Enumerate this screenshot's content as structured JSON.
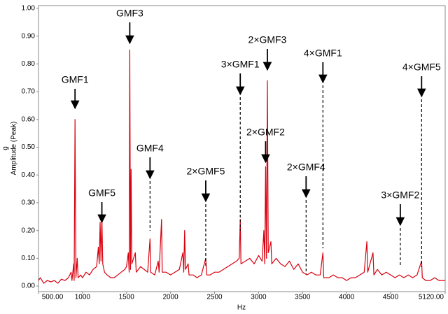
{
  "chart_data": {
    "type": "line",
    "x_label": "Hz",
    "y_label_unit": "g",
    "y_label": "Amplitude (Peak)",
    "x": [
      500,
      520,
      560,
      600,
      640,
      680,
      720,
      760,
      800,
      840,
      870,
      880,
      900,
      905,
      915,
      925,
      940,
      950,
      980,
      1000,
      1040,
      1080,
      1120,
      1160,
      1180,
      1190,
      1200,
      1210,
      1220,
      1230,
      1250,
      1280,
      1320,
      1360,
      1400,
      1440,
      1480,
      1500,
      1520,
      1530,
      1537,
      1545,
      1552,
      1560,
      1600,
      1610,
      1660,
      1700,
      1740,
      1767,
      1775,
      1820,
      1860,
      1870,
      1898,
      1905,
      1950,
      2000,
      2050,
      2100,
      2140,
      2150,
      2160,
      2170,
      2200,
      2210,
      2260,
      2300,
      2350,
      2400,
      2410,
      2450,
      2500,
      2550,
      2600,
      2650,
      2700,
      2750,
      2780,
      2792,
      2800,
      2850,
      2900,
      2950,
      3000,
      3040,
      3060,
      3070,
      3080,
      3090,
      3100,
      3110,
      3140,
      3150,
      3200,
      3250,
      3300,
      3350,
      3400,
      3450,
      3500,
      3550,
      3600,
      3650,
      3700,
      3731,
      3740,
      3800,
      3850,
      3900,
      3950,
      4000,
      4050,
      4100,
      4150,
      4200,
      4230,
      4240,
      4300,
      4310,
      4350,
      4400,
      4450,
      4500,
      4550,
      4600,
      4650,
      4700,
      4750,
      4800,
      4852,
      4860,
      4900,
      4950,
      5000,
      5050,
      5120
    ],
    "series": [
      {
        "color": "#d8000f",
        "values": [
          0.02,
          0.03,
          0.01,
          0.02,
          0.015,
          0.02,
          0.01,
          0.025,
          0.02,
          0.03,
          0.05,
          0.02,
          0.08,
          0.02,
          0.6,
          0.03,
          0.1,
          0.03,
          0.04,
          0.03,
          0.05,
          0.04,
          0.06,
          0.07,
          0.14,
          0.08,
          0.23,
          0.09,
          0.25,
          0.08,
          0.05,
          0.04,
          0.03,
          0.03,
          0.04,
          0.05,
          0.06,
          0.07,
          0.12,
          0.05,
          0.85,
          0.06,
          0.42,
          0.08,
          0.12,
          0.05,
          0.07,
          0.06,
          0.05,
          0.17,
          0.05,
          0.04,
          0.09,
          0.05,
          0.24,
          0.05,
          0.05,
          0.04,
          0.05,
          0.06,
          0.12,
          0.05,
          0.2,
          0.06,
          0.08,
          0.04,
          0.04,
          0.03,
          0.04,
          0.1,
          0.04,
          0.04,
          0.05,
          0.05,
          0.06,
          0.07,
          0.08,
          0.09,
          0.1,
          0.24,
          0.08,
          0.09,
          0.1,
          0.08,
          0.11,
          0.09,
          0.2,
          0.08,
          0.43,
          0.1,
          0.74,
          0.12,
          0.16,
          0.08,
          0.1,
          0.08,
          0.07,
          0.09,
          0.06,
          0.08,
          0.05,
          0.04,
          0.05,
          0.04,
          0.04,
          0.12,
          0.03,
          0.03,
          0.04,
          0.03,
          0.03,
          0.02,
          0.03,
          0.03,
          0.04,
          0.05,
          0.16,
          0.05,
          0.12,
          0.04,
          0.06,
          0.04,
          0.05,
          0.04,
          0.03,
          0.04,
          0.03,
          0.04,
          0.03,
          0.04,
          0.09,
          0.03,
          0.02,
          0.02,
          0.03,
          0.02,
          0.02
        ]
      }
    ],
    "xlim": [
      500,
      5120
    ],
    "xticks": [
      {
        "value": 500,
        "label": "500.00"
      },
      1000,
      1500,
      2000,
      2500,
      3000,
      3500,
      4000,
      4500,
      {
        "value": 5120,
        "label": "5120.00"
      }
    ],
    "ylim": [
      -0.02,
      1.01
    ],
    "yticks": [
      {
        "value": 0,
        "label": "0.00"
      },
      {
        "value": 0.1,
        "label": "0.10"
      },
      {
        "value": 0.2,
        "label": "0.20"
      },
      {
        "value": 0.3,
        "label": "0.30"
      },
      {
        "value": 0.4,
        "label": "0.40"
      },
      {
        "value": 0.5,
        "label": "0.50"
      },
      {
        "value": 0.6,
        "label": "0.60"
      },
      {
        "value": 0.7,
        "label": "0.70"
      },
      {
        "value": 0.8,
        "label": "0.80"
      },
      {
        "value": 0.9,
        "label": "0.90"
      },
      {
        "value": 1,
        "label": "1.00"
      }
    ],
    "grid": false,
    "annotations": [
      {
        "text": "GMF1",
        "x": 915
      },
      {
        "text": "GMF5",
        "x": 1220
      },
      {
        "text": "GMF3",
        "x": 1537
      },
      {
        "text": "GMF4",
        "x": 1767
      },
      {
        "text": "2×GMF5",
        "x": 2400
      },
      {
        "text": "3×GMF1",
        "x": 2792
      },
      {
        "text": "2×GMF3",
        "x": 3100
      },
      {
        "text": "2×GMF2",
        "x": 3080
      },
      {
        "text": "4×GMF1",
        "x": 3731
      },
      {
        "text": "2×GMF4",
        "x": 3540
      },
      {
        "text": "3×GMF2",
        "x": 4610
      },
      {
        "text": "4×GMF5",
        "x": 4852
      }
    ]
  }
}
